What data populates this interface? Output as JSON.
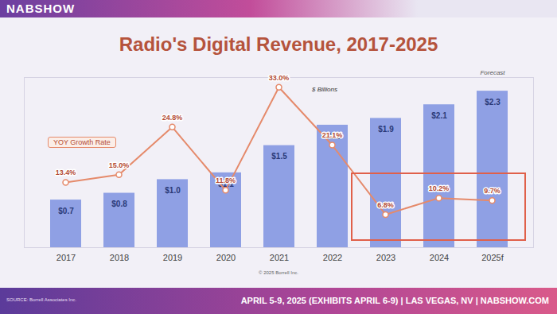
{
  "chart_data": {
    "type": "bar",
    "header": "NABSHOW",
    "title": "Radio's Digital Revenue, 2017-2025",
    "categories": [
      "2017",
      "2018",
      "2019",
      "2020",
      "2021",
      "2022",
      "2023",
      "2024",
      "2025f"
    ],
    "series": [
      {
        "name": "$ Billions",
        "type": "bar",
        "color": "#8fa0e4",
        "values": [
          0.7,
          0.8,
          1.0,
          1.1,
          1.5,
          1.8,
          1.9,
          2.1,
          2.3
        ],
        "value_labels": [
          "$0.7",
          "$0.8",
          "$1.0",
          "$1.1",
          "$1.5",
          "$1.8",
          "$1.9",
          "$2.1",
          "$2.3"
        ]
      },
      {
        "name": "YOY Growth Rate",
        "type": "line",
        "axis": "y2",
        "color": "#e58a6b",
        "marker": "circle",
        "values": [
          13.4,
          15.0,
          24.8,
          11.8,
          33.0,
          21.1,
          6.8,
          10.2,
          9.7
        ],
        "value_labels": [
          "13.4%",
          "15.0%",
          "24.8%",
          "11.8%",
          "33.0%",
          "21.1%",
          "6.8%",
          "10.2%",
          "9.7%"
        ]
      }
    ],
    "ylim": [
      0,
      2.5
    ],
    "yticks": [],
    "y2lim": [
      0,
      35
    ],
    "y2ticks": [],
    "tick_labels": "x",
    "data_labels": true,
    "grid": false,
    "annotations": [
      {
        "text": "Forecast",
        "x": "2025f"
      }
    ],
    "copyright": "© 2025 Borrell Inc.",
    "source": "SOURCE: Borrell Associates Inc.",
    "footer": "APRIL 5-9, 2025 (EXHIBITS APRIL 6-9) | LAS VEGAS, NV | NABSHOW.COM"
  }
}
